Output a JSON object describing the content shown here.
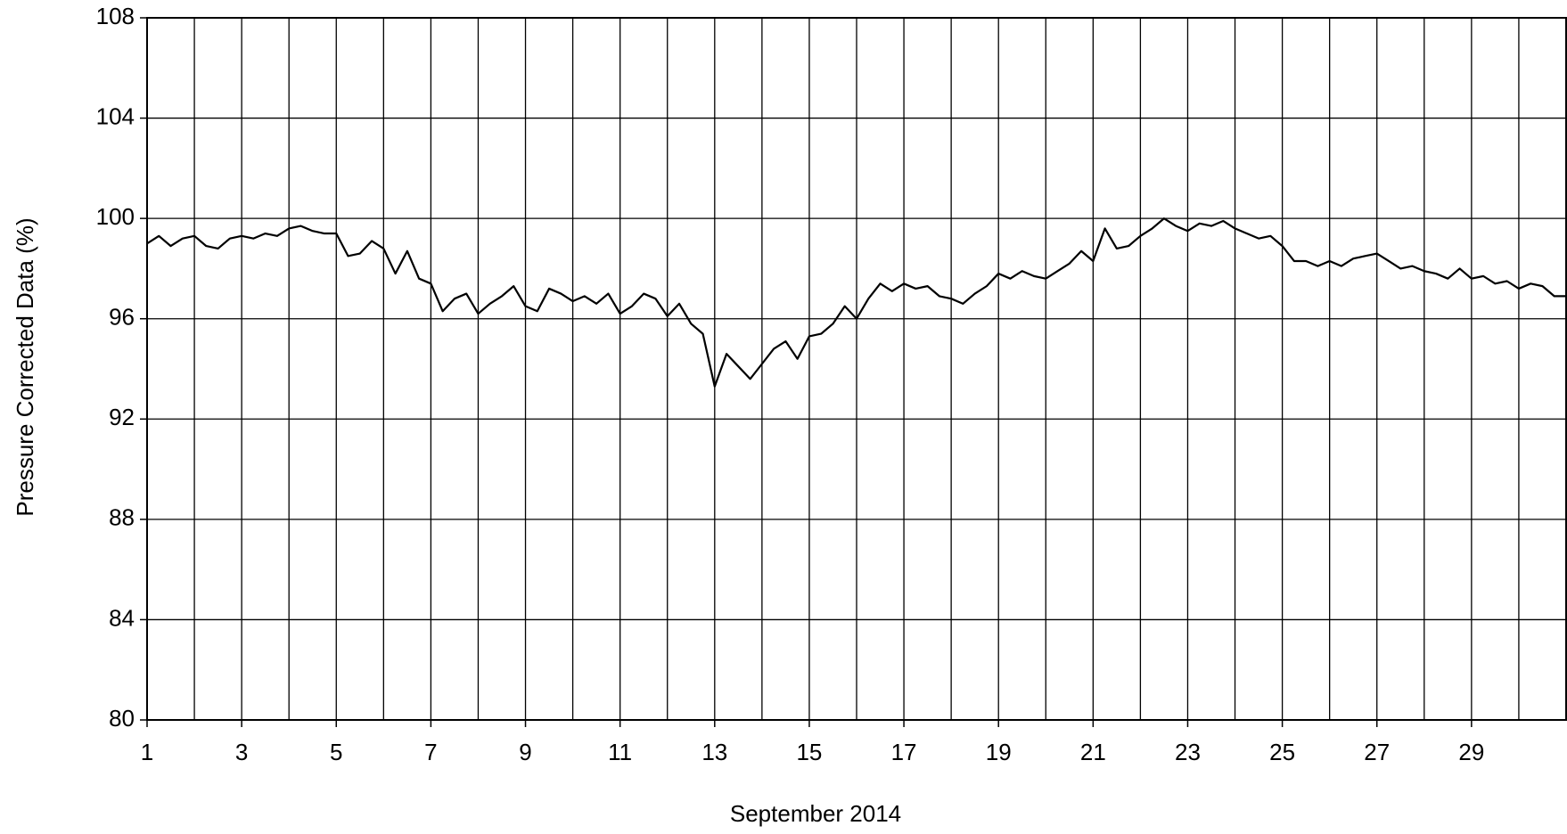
{
  "chart_data": {
    "type": "line",
    "xlabel": "September 2014",
    "ylabel": "Pressure Corrected Data (%)",
    "xlim": [
      1,
      31
    ],
    "ylim": [
      80,
      108
    ],
    "xticks": [
      1,
      3,
      5,
      7,
      9,
      11,
      13,
      15,
      17,
      19,
      21,
      23,
      25,
      27,
      29
    ],
    "xgrid": [
      1,
      2,
      3,
      4,
      5,
      6,
      7,
      8,
      9,
      10,
      11,
      12,
      13,
      14,
      15,
      16,
      17,
      18,
      19,
      20,
      21,
      22,
      23,
      24,
      25,
      26,
      27,
      28,
      29,
      30,
      31
    ],
    "yticks": [
      80,
      84,
      88,
      92,
      96,
      100,
      104,
      108
    ],
    "grid": true,
    "series": [
      {
        "color": "#000000",
        "x": [
          1,
          1.25,
          1.5,
          1.75,
          2,
          2.25,
          2.5,
          2.75,
          3,
          3.25,
          3.5,
          3.75,
          4,
          4.25,
          4.5,
          4.75,
          5,
          5.25,
          5.5,
          5.75,
          6,
          6.25,
          6.5,
          6.75,
          7,
          7.25,
          7.5,
          7.75,
          8,
          8.25,
          8.5,
          8.75,
          9,
          9.25,
          9.5,
          9.75,
          10,
          10.25,
          10.5,
          10.75,
          11,
          11.25,
          11.5,
          11.75,
          12,
          12.25,
          12.5,
          12.75,
          13,
          13.25,
          13.5,
          13.75,
          14,
          14.25,
          14.5,
          14.75,
          15,
          15.25,
          15.5,
          15.75,
          16,
          16.25,
          16.5,
          16.75,
          17,
          17.25,
          17.5,
          17.75,
          18,
          18.25,
          18.5,
          18.75,
          19,
          19.25,
          19.5,
          19.75,
          20,
          20.25,
          20.5,
          20.75,
          21,
          21.25,
          21.5,
          21.75,
          22,
          22.25,
          22.5,
          22.75,
          23,
          23.25,
          23.5,
          23.75,
          24,
          24.25,
          24.5,
          24.75,
          25,
          25.25,
          25.5,
          25.75,
          26,
          26.25,
          26.5,
          26.75,
          27,
          27.25,
          27.5,
          27.75,
          28,
          28.25,
          28.5,
          28.75,
          29,
          29.25,
          29.5,
          29.75,
          30,
          30.25,
          30.5,
          30.75,
          31
        ],
        "values": [
          99.0,
          99.3,
          98.9,
          99.2,
          99.3,
          98.9,
          98.8,
          99.2,
          99.3,
          99.2,
          99.4,
          99.3,
          99.6,
          99.7,
          99.5,
          99.4,
          99.4,
          98.5,
          98.6,
          99.1,
          98.8,
          97.8,
          98.7,
          97.6,
          97.4,
          96.3,
          96.8,
          97.0,
          96.2,
          96.6,
          96.9,
          97.3,
          96.5,
          96.3,
          97.2,
          97.0,
          96.7,
          96.9,
          96.6,
          97.0,
          96.2,
          96.5,
          97.0,
          96.8,
          96.1,
          96.6,
          95.8,
          95.4,
          93.3,
          94.6,
          94.1,
          93.6,
          94.2,
          94.8,
          95.1,
          94.4,
          95.3,
          95.4,
          95.8,
          96.5,
          96.0,
          96.8,
          97.4,
          97.1,
          97.4,
          97.2,
          97.3,
          96.9,
          96.8,
          96.6,
          97.0,
          97.3,
          97.8,
          97.6,
          97.9,
          97.7,
          97.6,
          97.9,
          98.2,
          98.7,
          98.3,
          99.6,
          98.8,
          98.9,
          99.3,
          99.6,
          100.0,
          99.7,
          99.5,
          99.8,
          99.7,
          99.9,
          99.6,
          99.4,
          99.2,
          99.3,
          98.9,
          98.3,
          98.3,
          98.1,
          98.3,
          98.1,
          98.4,
          98.5,
          98.6,
          98.3,
          98.0,
          98.1,
          97.9,
          97.8,
          97.6,
          98.0,
          97.6,
          97.7,
          97.4,
          97.5,
          97.2,
          97.4,
          97.3,
          96.9,
          96.9
        ]
      }
    ]
  }
}
